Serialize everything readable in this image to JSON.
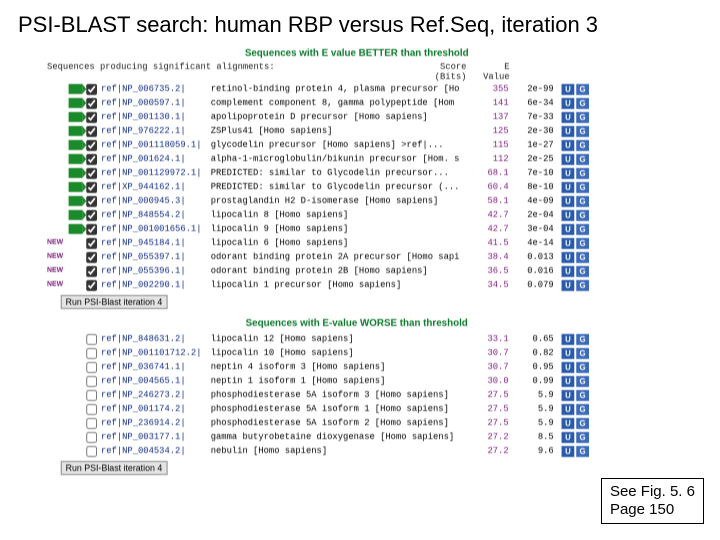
{
  "title": "PSI-BLAST search: human RBP versus Ref.Seq, iteration 3",
  "header_better": "Sequences with E value BETTER than threshold",
  "header_worse": "Sequences with E-value WORSE than threshold",
  "col_align": "Sequences producing significant alignments:",
  "col_score": "Score\n(Bits)",
  "col_e": "E\nValue",
  "run_btn_1": "Run PSI-Blast iteration 4",
  "run_btn_2": "Run PSI-Blast iteration 4",
  "caption_line1": "See Fig. 5. 6",
  "caption_line2": "Page 150",
  "badge_u": "U",
  "badge_g": "G",
  "rows_better": [
    {
      "new": false,
      "flag": true,
      "checked": true,
      "ref": "ref|NP_006735.2|",
      "desc": "retinol-binding protein 4, plasma precursor [Ho",
      "score": "355",
      "eval": "2e-99"
    },
    {
      "new": false,
      "flag": true,
      "checked": true,
      "ref": "ref|NP_000597.1|",
      "desc": "complement component 8, gamma polypeptide [Hom",
      "score": "141",
      "eval": "6e-34"
    },
    {
      "new": false,
      "flag": true,
      "checked": true,
      "ref": "ref|NP_001130.1|",
      "desc": "apolipoprotein D precursor [Homo sapiens]",
      "score": "137",
      "eval": "7e-33"
    },
    {
      "new": false,
      "flag": true,
      "checked": true,
      "ref": "ref|NP_976222.1|",
      "desc": "ZSPlus41 [Homo sapiens]",
      "score": "125",
      "eval": "2e-30"
    },
    {
      "new": false,
      "flag": true,
      "checked": true,
      "ref": "ref|NP_001118059.1|",
      "desc": "glycodelin precursor [Homo sapiens] >ref|...",
      "score": "115",
      "eval": "1e-27"
    },
    {
      "new": false,
      "flag": true,
      "checked": true,
      "ref": "ref|NP_001624.1|",
      "desc": "alpha-1-microglobulin/bikunin precursor [Hom. s",
      "score": "112",
      "eval": "2e-25"
    },
    {
      "new": false,
      "flag": true,
      "checked": true,
      "ref": "ref|NP_001129972.1|",
      "desc": "PREDICTED: similar to Glycodelin precursor...",
      "score": "68.1",
      "eval": "7e-10"
    },
    {
      "new": false,
      "flag": true,
      "checked": true,
      "ref": "ref|XP_944162.1|",
      "desc": "PREDICTED: similar to Glycodelin precursor (...",
      "score": "60.4",
      "eval": "8e-10"
    },
    {
      "new": false,
      "flag": true,
      "checked": true,
      "ref": "ref|NP_000945.3|",
      "desc": "prostaglandin H2 D-isomerase [Homo sapiens]",
      "score": "58.1",
      "eval": "4e-09"
    },
    {
      "new": false,
      "flag": true,
      "checked": true,
      "ref": "ref|NP_848554.2|",
      "desc": "lipocalin 8 [Homo sapiens]",
      "score": "42.7",
      "eval": "2e-04"
    },
    {
      "new": false,
      "flag": true,
      "checked": true,
      "ref": "ref|NP_001001656.1|",
      "desc": "lipocalin 9 [Homo sapiens]",
      "score": "42.7",
      "eval": "3e-04"
    },
    {
      "new": true,
      "flag": false,
      "checked": true,
      "ref": "ref|NP_945184.1|",
      "desc": "lipocalin 6 [Homo sapiens]",
      "score": "41.5",
      "eval": "4e-14"
    },
    {
      "new": true,
      "flag": false,
      "checked": true,
      "ref": "ref|NP_055397.1|",
      "desc": "odorant binding protein 2A precursor [Homo sapi",
      "score": "38.4",
      "eval": "0.013"
    },
    {
      "new": true,
      "flag": false,
      "checked": true,
      "ref": "ref|NP_055396.1|",
      "desc": "odorant binding protein 2B [Homo sapiens]",
      "score": "36.5",
      "eval": "0.016"
    },
    {
      "new": true,
      "flag": false,
      "checked": true,
      "ref": "ref|NP_002290.1|",
      "desc": "lipocalin 1 precursor [Homo sapiens]",
      "score": "34.5",
      "eval": "0.079"
    }
  ],
  "rows_worse": [
    {
      "ref": "ref|NP_848631.2|",
      "desc": "lipocalin 12 [Homo sapiens]",
      "score": "33.1",
      "eval": "0.65"
    },
    {
      "ref": "ref|NP_001101712.2|",
      "desc": "lipocalin 10 [Homo sapiens]",
      "score": "30.7",
      "eval": "0.82"
    },
    {
      "ref": "ref|NP_036741.1|",
      "desc": "neptin 4 isoform 3 [Homo sapiens]",
      "score": "30.7",
      "eval": "0.95"
    },
    {
      "ref": "ref|NP_004565.1|",
      "desc": "neptin 1 isoform 1 [Homo sapiens]",
      "score": "30.0",
      "eval": "0.99"
    },
    {
      "ref": "ref|NP_246273.2|",
      "desc": "phosphodiesterase 5A isoform 3 [Homo sapiens]",
      "score": "27.5",
      "eval": "5.9"
    },
    {
      "ref": "ref|NP_001174.2|",
      "desc": "phosphodiesterase 5A isoform 1 [Homo sapiens]",
      "score": "27.5",
      "eval": "5.9"
    },
    {
      "ref": "ref|NP_236914.2|",
      "desc": "phosphodiesterase 5A isoform 2 [Homo sapiens]",
      "score": "27.5",
      "eval": "5.9"
    },
    {
      "ref": "ref|NP_003177.1|",
      "desc": "gamma butyrobetaine dioxygenase [Homo sapiens]",
      "score": "27.2",
      "eval": "8.5"
    },
    {
      "ref": "ref|NP_004534.2|",
      "desc": "nebulin [Homo sapiens]",
      "score": "27.2",
      "eval": "9.6"
    }
  ]
}
